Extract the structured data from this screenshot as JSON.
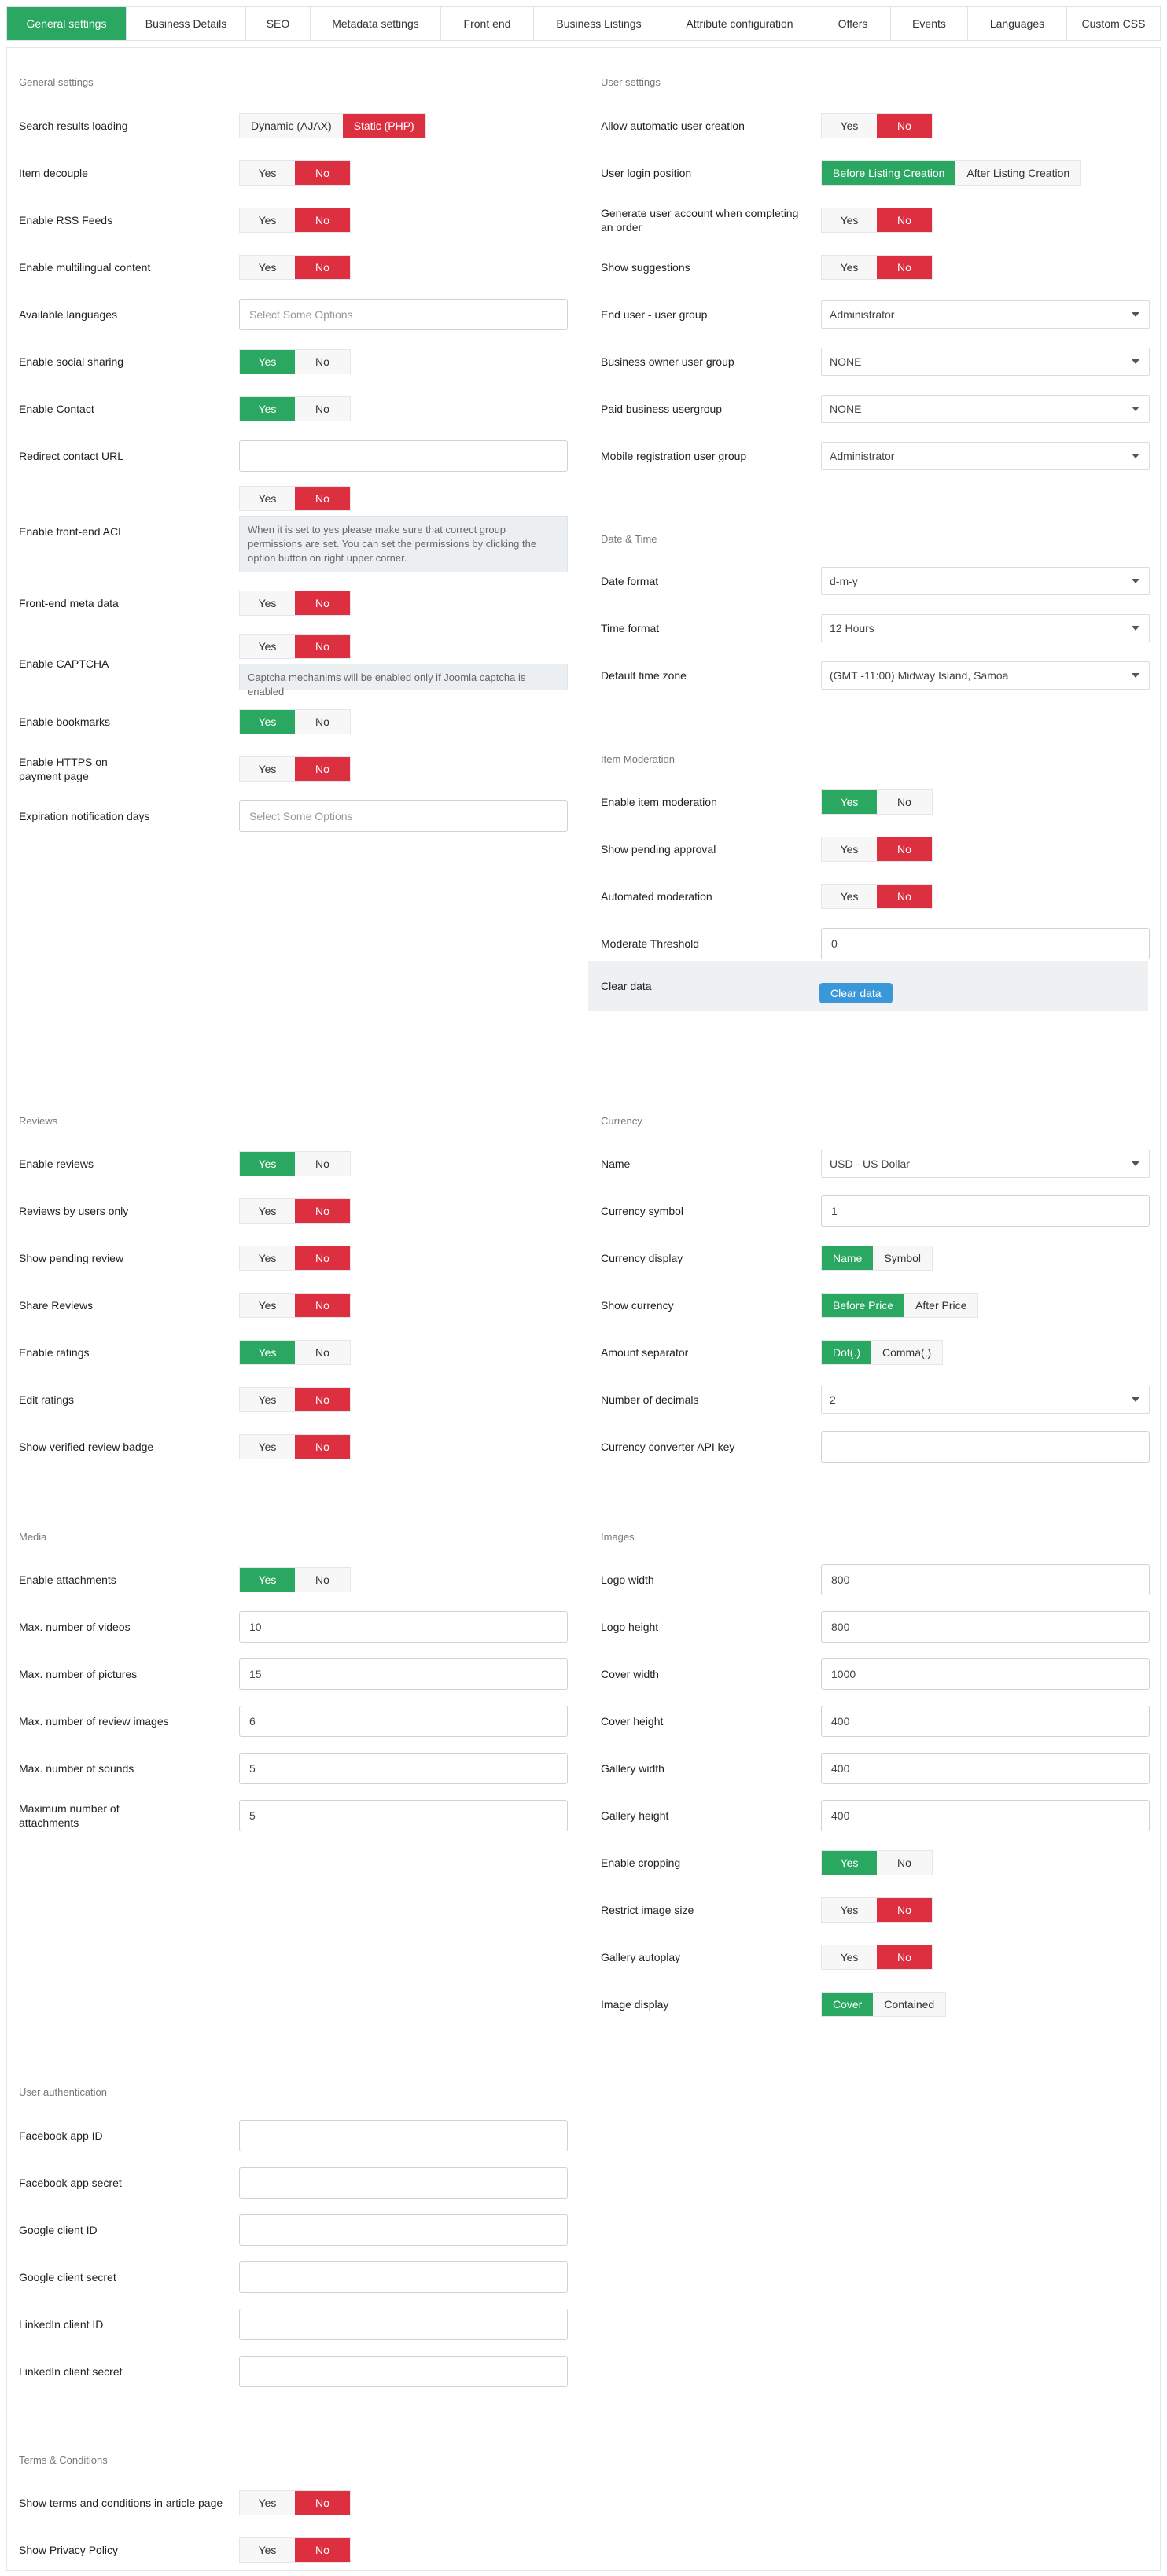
{
  "tabs": [
    "General settings",
    "Business Details",
    "SEO",
    "Metadata settings",
    "Front end",
    "Business Listings",
    "Attribute configuration",
    "Offers",
    "Events",
    "Languages",
    "Custom CSS"
  ],
  "sections": {
    "general": "General settings",
    "user": "User settings",
    "datetime": "Date & Time",
    "moderation": "Item Moderation",
    "reviews": "Reviews",
    "currency": "Currency",
    "media": "Media",
    "images": "Images",
    "auth": "User authentication",
    "terms": "Terms & Conditions"
  },
  "yes": "Yes",
  "no": "No",
  "general": {
    "search_results_loading": "Search results loading",
    "dynamic": "Dynamic (AJAX)",
    "static": "Static (PHP)",
    "item_decouple": "Item decouple",
    "enable_rss": "Enable RSS Feeds",
    "enable_multilingual": "Enable multilingual content",
    "available_languages": "Available languages",
    "select_some": "Select Some Options",
    "enable_social": "Enable social sharing",
    "enable_contact": "Enable Contact",
    "redirect_contact": "Redirect contact URL",
    "enable_acl": "Enable front-end ACL",
    "acl_note": "When it is set to yes please make sure that correct group permissions are set. You can set the permissions by clicking the option button on right upper corner.",
    "front_meta": "Front-end meta data",
    "enable_captcha": "Enable CAPTCHA",
    "captcha_note": "Captcha mechanims will be enabled only if Joomla captcha is enabled",
    "enable_bookmarks": "Enable bookmarks",
    "enable_https": "Enable HTTPS on payment page",
    "expiration_days": "Expiration notification days"
  },
  "user": {
    "auto_create": "Allow automatic user creation",
    "login_position": "User login position",
    "before": "Before Listing Creation",
    "after": "After Listing Creation",
    "generate_account": "Generate user account when completing an order",
    "show_suggestions": "Show suggestions",
    "end_user_group": "End user - user group",
    "end_user_group_val": "Administrator",
    "owner_group": "Business owner user group",
    "owner_group_val": "NONE",
    "paid_group": "Paid business usergroup",
    "paid_group_val": "NONE",
    "mobile_group": "Mobile registration user group",
    "mobile_group_val": "Administrator"
  },
  "datetime": {
    "date_format": "Date format",
    "date_val": "d-m-y",
    "time_format": "Time format",
    "time_val": "12 Hours",
    "timezone": "Default time zone",
    "timezone_val": "(GMT -11:00) Midway Island, Samoa"
  },
  "moderation": {
    "enable": "Enable item moderation",
    "pending": "Show pending approval",
    "automated": "Automated moderation",
    "threshold": "Moderate Threshold",
    "threshold_val": "0",
    "clear": "Clear data",
    "clear_btn": "Clear data"
  },
  "reviews": {
    "enable": "Enable reviews",
    "users_only": "Reviews by users only",
    "pending": "Show pending review",
    "share": "Share Reviews",
    "ratings": "Enable ratings",
    "edit": "Edit ratings",
    "verified": "Show verified review badge"
  },
  "currency": {
    "name": "Name",
    "name_val": "USD - US Dollar",
    "symbol": "Currency symbol",
    "symbol_val": "1",
    "display": "Currency display",
    "display_name": "Name",
    "display_symbol": "Symbol",
    "show": "Show currency",
    "before": "Before Price",
    "after": "After Price",
    "separator": "Amount separator",
    "dot": "Dot(.)",
    "comma": "Comma(,)",
    "decimals": "Number of decimals",
    "decimals_val": "2",
    "api_key": "Currency converter API key"
  },
  "media": {
    "attachments": "Enable attachments",
    "videos": "Max. number of videos",
    "videos_val": "10",
    "pictures": "Max. number of pictures",
    "pictures_val": "15",
    "review_images": "Max. number of review images",
    "review_images_val": "6",
    "sounds": "Max. number of sounds",
    "sounds_val": "5",
    "max_attach": "Maximum number of attachments",
    "max_attach_val": "5"
  },
  "images": {
    "logo_w": "Logo width",
    "logo_w_val": "800",
    "logo_h": "Logo height",
    "logo_h_val": "800",
    "cover_w": "Cover width",
    "cover_w_val": "1000",
    "cover_h": "Cover height",
    "cover_h_val": "400",
    "gallery_w": "Gallery width",
    "gallery_w_val": "400",
    "gallery_h": "Gallery height",
    "gallery_h_val": "400",
    "cropping": "Enable cropping",
    "restrict": "Restrict image size",
    "autoplay": "Gallery autoplay",
    "display": "Image display",
    "cover": "Cover",
    "contained": "Contained"
  },
  "auth": {
    "fb_id": "Facebook app ID",
    "fb_secret": "Facebook app secret",
    "g_id": "Google client ID",
    "g_secret": "Google client secret",
    "li_id": "LinkedIn client ID",
    "li_secret": "LinkedIn client secret"
  },
  "terms": {
    "show_terms": "Show terms and conditions in article page",
    "show_privacy": "Show Privacy Policy"
  }
}
